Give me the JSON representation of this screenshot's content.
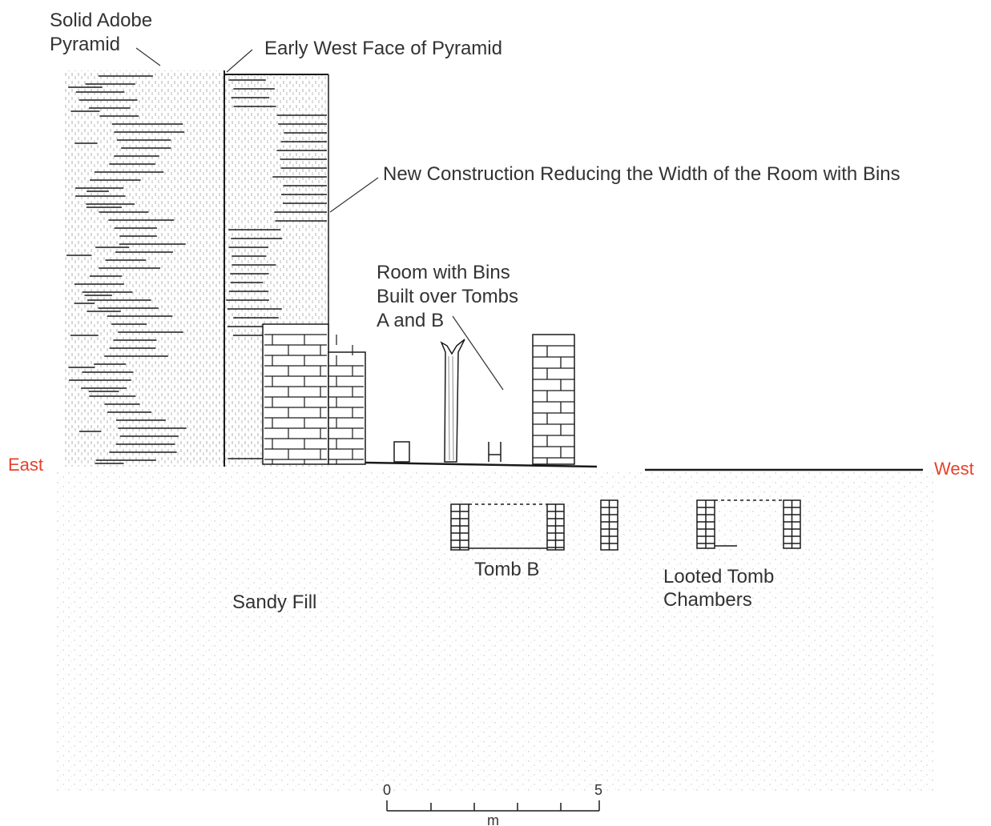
{
  "labels": {
    "solid_adobe_pyramid": [
      "Solid Adobe",
      "Pyramid"
    ],
    "early_west_face": "Early West Face of Pyramid",
    "new_construction": "New Construction Reducing the Width of the Room with Bins",
    "room_with_bins": [
      "Room with Bins",
      "Built  over Tombs",
      "A and B"
    ],
    "east": "East",
    "west": "West",
    "tomb_b": "Tomb B",
    "looted_tomb_chambers": [
      "Looted Tomb",
      "Chambers"
    ],
    "sandy_fill": "Sandy Fill"
  },
  "scale": {
    "start": "0",
    "end": "5",
    "unit": "m"
  },
  "colors": {
    "direction": "#e8402a",
    "ink": "#222222",
    "fill_dots": "#b8b8b8"
  }
}
